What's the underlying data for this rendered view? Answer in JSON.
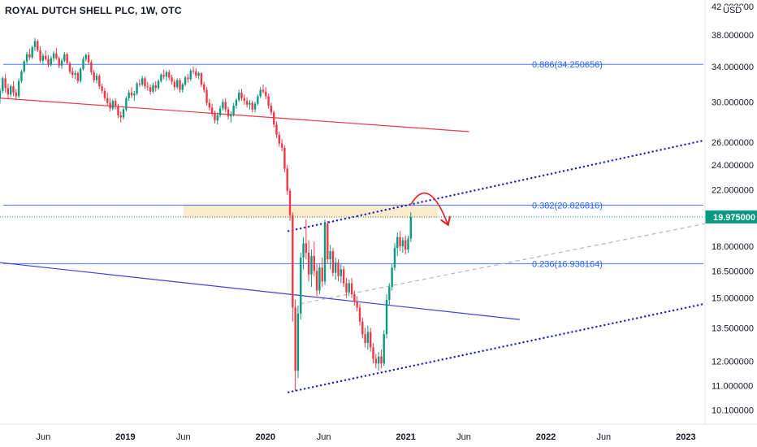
{
  "header": {
    "title": "ROYAL DUTCH SHELL PLC, 1W, OTC",
    "currency": "USD"
  },
  "chart_data": {
    "type": "candlestick",
    "title": "ROYAL DUTCH SHELL PLC, 1W, OTC",
    "y_axis": {
      "scale": "log",
      "currency": "USD",
      "ticks": [
        "42.000000",
        "38.000000",
        "34.000000",
        "30.000000",
        "26.000000",
        "24.000000",
        "22.000000",
        "18.000000",
        "16.500000",
        "15.000000",
        "13.500000",
        "12.000000",
        "11.000000",
        "10.100000"
      ],
      "tick_values": [
        42,
        38,
        34,
        30,
        26,
        24,
        22,
        18,
        16.5,
        15,
        13.5,
        12,
        11,
        10.1
      ],
      "range": [
        9.6,
        43
      ]
    },
    "x_axis": {
      "ticks": [
        "Jun",
        "2019",
        "Jun",
        "2020",
        "Jun",
        "2021",
        "Jun",
        "2022",
        "Jun",
        "2023"
      ],
      "tick_dates": [
        "2018-06-01",
        "2019-01-01",
        "2019-06-01",
        "2020-01-01",
        "2020-06-01",
        "2021-01-01",
        "2021-06-01",
        "2022-01-01",
        "2022-06-01",
        "2023-01-01"
      ],
      "bold": [
        false,
        true,
        false,
        true,
        false,
        true,
        false,
        true,
        false,
        true
      ],
      "range": [
        "2018-02-08",
        "2023-02-20"
      ]
    },
    "last_price": {
      "label": "19.975000",
      "value": 19.975,
      "color": "#089981"
    },
    "fib_levels": [
      {
        "label": "0.886(34.250656)",
        "value": 34.250656
      },
      {
        "label": "0.382(20.826816)",
        "value": 20.826816
      },
      {
        "label": "0.236(16.938164)",
        "value": 16.938164
      }
    ],
    "zones": [
      {
        "from_date": "2019-06-01",
        "to_date": "2021-03-25",
        "low": 19.9,
        "high": 20.9,
        "color": "#fde7c6"
      }
    ],
    "trendlines": [
      {
        "name": "upper-red",
        "color": "#f23645",
        "style": "solid",
        "p1": [
          "2018-02-08",
          30.4
        ],
        "p2": [
          "2021-06-15",
          27.0
        ]
      },
      {
        "name": "lower-blue",
        "color": "#3f3fd4",
        "style": "solid",
        "p1": [
          "2018-02-08",
          17.0
        ],
        "p2": [
          "2021-10-25",
          13.9
        ]
      },
      {
        "name": "upper-dotted",
        "color": "#2222bb",
        "style": "dotted",
        "p1": [
          "2020-03-01",
          19.0
        ],
        "p2": [
          "2023-02-20",
          26.2
        ]
      },
      {
        "name": "lower-dotted",
        "color": "#2222bb",
        "style": "dotted",
        "p1": [
          "2020-03-01",
          10.75
        ],
        "p2": [
          "2023-02-20",
          14.7
        ]
      },
      {
        "name": "mid-dashed",
        "color": "#b2b5be",
        "style": "dashed",
        "p1": [
          "2020-04-01",
          14.7
        ],
        "p2": [
          "2023-02-20",
          19.5
        ]
      }
    ],
    "arrow": {
      "color": "#e02020",
      "from": [
        "2021-01-15",
        20.9
      ],
      "peak": [
        "2021-03-01",
        21.4
      ],
      "to": [
        "2021-04-20",
        19.5
      ]
    },
    "colors": {
      "up": "#089981",
      "down": "#f23645",
      "fib": "#2962ff",
      "grid": "#e0e3eb"
    },
    "candles": [
      [
        "2018-02-08",
        30.4,
        31.5,
        29.8,
        31.2
      ],
      [
        "2018-02-15",
        31.2,
        32.8,
        30.9,
        32.6
      ],
      [
        "2018-02-22",
        32.6,
        33.1,
        31.0,
        31.5
      ],
      [
        "2018-03-01",
        31.5,
        32.0,
        30.3,
        30.8
      ],
      [
        "2018-03-08",
        30.8,
        31.9,
        30.5,
        31.7
      ],
      [
        "2018-03-15",
        31.7,
        32.3,
        30.6,
        31.0
      ],
      [
        "2018-03-22",
        31.0,
        31.4,
        30.2,
        30.6
      ],
      [
        "2018-03-29",
        30.6,
        32.6,
        30.4,
        32.3
      ],
      [
        "2018-04-05",
        32.3,
        33.6,
        32.1,
        33.4
      ],
      [
        "2018-04-12",
        33.4,
        34.8,
        33.2,
        34.6
      ],
      [
        "2018-04-19",
        34.6,
        35.8,
        34.3,
        35.5
      ],
      [
        "2018-04-26",
        35.5,
        36.2,
        34.8,
        35.1
      ],
      [
        "2018-05-03",
        35.1,
        36.6,
        34.9,
        36.4
      ],
      [
        "2018-05-10",
        36.4,
        37.6,
        35.9,
        37.2
      ],
      [
        "2018-05-17",
        37.2,
        37.4,
        35.8,
        36.0
      ],
      [
        "2018-05-24",
        36.0,
        36.5,
        34.4,
        34.7
      ],
      [
        "2018-05-31",
        34.7,
        35.6,
        34.2,
        35.3
      ],
      [
        "2018-06-07",
        35.3,
        36.0,
        34.7,
        34.9
      ],
      [
        "2018-06-14",
        34.9,
        35.4,
        33.9,
        34.2
      ],
      [
        "2018-06-21",
        34.2,
        35.3,
        34.0,
        35.0
      ],
      [
        "2018-06-28",
        35.0,
        35.9,
        34.6,
        35.6
      ],
      [
        "2018-07-05",
        35.6,
        36.3,
        34.8,
        35.0
      ],
      [
        "2018-07-12",
        35.0,
        35.2,
        33.8,
        34.1
      ],
      [
        "2018-07-19",
        34.1,
        35.0,
        33.7,
        34.7
      ],
      [
        "2018-07-26",
        34.7,
        35.8,
        34.5,
        35.5
      ],
      [
        "2018-08-02",
        35.5,
        35.7,
        34.2,
        34.4
      ],
      [
        "2018-08-09",
        34.4,
        34.6,
        33.1,
        33.4
      ],
      [
        "2018-08-16",
        33.4,
        33.9,
        32.6,
        33.0
      ],
      [
        "2018-08-23",
        33.0,
        33.5,
        32.5,
        33.2
      ],
      [
        "2018-08-30",
        33.2,
        33.4,
        32.0,
        32.3
      ],
      [
        "2018-09-06",
        32.3,
        33.9,
        32.1,
        33.7
      ],
      [
        "2018-09-13",
        33.7,
        35.2,
        33.5,
        34.9
      ],
      [
        "2018-09-20",
        34.9,
        35.6,
        34.6,
        35.4
      ],
      [
        "2018-09-27",
        35.4,
        35.8,
        34.2,
        34.5
      ],
      [
        "2018-10-04",
        34.5,
        34.8,
        33.0,
        33.3
      ],
      [
        "2018-10-11",
        33.3,
        33.6,
        32.1,
        32.4
      ],
      [
        "2018-10-18",
        32.4,
        33.2,
        32.0,
        32.9
      ],
      [
        "2018-10-25",
        32.9,
        33.1,
        31.4,
        31.7
      ],
      [
        "2018-11-01",
        31.7,
        32.0,
        30.9,
        31.2
      ],
      [
        "2018-11-08",
        31.2,
        31.5,
        30.1,
        30.4
      ],
      [
        "2018-11-15",
        30.4,
        31.0,
        29.6,
        29.9
      ],
      [
        "2018-11-22",
        29.9,
        30.4,
        29.0,
        29.3
      ],
      [
        "2018-11-29",
        29.3,
        30.3,
        29.1,
        30.1
      ],
      [
        "2018-12-06",
        30.1,
        30.4,
        29.2,
        29.5
      ],
      [
        "2018-12-13",
        29.5,
        29.8,
        28.3,
        28.6
      ],
      [
        "2018-12-20",
        28.6,
        29.0,
        27.9,
        28.4
      ],
      [
        "2018-12-27",
        28.4,
        29.5,
        28.2,
        29.2
      ],
      [
        "2019-01-03",
        29.2,
        30.6,
        29.0,
        30.4
      ],
      [
        "2019-01-10",
        30.4,
        31.3,
        30.1,
        31.0
      ],
      [
        "2019-01-17",
        31.0,
        31.6,
        30.4,
        30.7
      ],
      [
        "2019-01-24",
        30.7,
        31.2,
        30.1,
        30.9
      ],
      [
        "2019-01-31",
        30.9,
        32.2,
        30.7,
        32.0
      ],
      [
        "2019-02-07",
        32.0,
        32.5,
        31.6,
        31.9
      ],
      [
        "2019-02-14",
        31.9,
        32.9,
        31.7,
        32.6
      ],
      [
        "2019-02-21",
        32.6,
        32.8,
        31.4,
        31.7
      ],
      [
        "2019-02-28",
        31.7,
        32.2,
        31.2,
        31.6
      ],
      [
        "2019-03-07",
        31.6,
        31.9,
        30.8,
        31.1
      ],
      [
        "2019-03-14",
        31.1,
        32.1,
        30.9,
        31.8
      ],
      [
        "2019-03-21",
        31.8,
        32.3,
        31.1,
        31.5
      ],
      [
        "2019-03-28",
        31.5,
        32.5,
        31.3,
        32.3
      ],
      [
        "2019-04-04",
        32.3,
        33.2,
        32.1,
        33.0
      ],
      [
        "2019-04-11",
        33.0,
        33.6,
        32.5,
        32.8
      ],
      [
        "2019-04-18",
        32.8,
        33.5,
        32.3,
        33.3
      ],
      [
        "2019-04-25",
        33.3,
        33.6,
        32.4,
        32.7
      ],
      [
        "2019-05-02",
        32.7,
        33.0,
        31.9,
        32.2
      ],
      [
        "2019-05-09",
        32.2,
        32.5,
        31.3,
        31.6
      ],
      [
        "2019-05-16",
        31.6,
        32.6,
        31.4,
        32.4
      ],
      [
        "2019-05-23",
        32.4,
        32.6,
        31.0,
        31.3
      ],
      [
        "2019-05-30",
        31.3,
        32.1,
        31.0,
        31.9
      ],
      [
        "2019-06-06",
        31.9,
        32.9,
        31.7,
        32.7
      ],
      [
        "2019-06-13",
        32.7,
        33.1,
        32.1,
        32.5
      ],
      [
        "2019-06-20",
        32.5,
        33.7,
        32.3,
        33.5
      ],
      [
        "2019-06-27",
        33.5,
        34.0,
        33.1,
        33.4
      ],
      [
        "2019-07-04",
        33.4,
        33.8,
        32.6,
        32.9
      ],
      [
        "2019-07-11",
        32.9,
        33.4,
        32.5,
        33.2
      ],
      [
        "2019-07-18",
        33.2,
        33.3,
        31.6,
        31.9
      ],
      [
        "2019-07-25",
        31.9,
        32.2,
        31.0,
        31.3
      ],
      [
        "2019-08-01",
        31.3,
        31.6,
        29.6,
        29.9
      ],
      [
        "2019-08-08",
        29.9,
        30.3,
        29.1,
        29.4
      ],
      [
        "2019-08-15",
        29.4,
        29.8,
        28.5,
        28.8
      ],
      [
        "2019-08-22",
        28.8,
        29.1,
        27.8,
        28.1
      ],
      [
        "2019-08-29",
        28.1,
        28.9,
        27.7,
        28.6
      ],
      [
        "2019-09-05",
        28.6,
        29.6,
        28.4,
        29.3
      ],
      [
        "2019-09-12",
        29.3,
        30.3,
        29.1,
        30.0
      ],
      [
        "2019-09-19",
        30.0,
        30.4,
        28.9,
        29.2
      ],
      [
        "2019-09-26",
        29.2,
        29.5,
        28.2,
        28.5
      ],
      [
        "2019-10-03",
        28.5,
        29.0,
        27.9,
        28.7
      ],
      [
        "2019-10-10",
        28.7,
        29.9,
        28.5,
        29.6
      ],
      [
        "2019-10-17",
        29.6,
        30.4,
        29.3,
        30.2
      ],
      [
        "2019-10-24",
        30.2,
        31.3,
        30.0,
        31.0
      ],
      [
        "2019-10-31",
        31.0,
        31.4,
        30.1,
        30.4
      ],
      [
        "2019-11-07",
        30.4,
        30.8,
        29.7,
        30.1
      ],
      [
        "2019-11-14",
        30.1,
        30.5,
        29.4,
        29.7
      ],
      [
        "2019-11-21",
        29.7,
        30.2,
        29.2,
        29.9
      ],
      [
        "2019-11-28",
        29.9,
        30.1,
        28.9,
        29.2
      ],
      [
        "2019-12-05",
        29.2,
        30.0,
        28.9,
        29.8
      ],
      [
        "2019-12-12",
        29.8,
        30.8,
        29.6,
        30.6
      ],
      [
        "2019-12-19",
        30.6,
        31.6,
        30.4,
        31.3
      ],
      [
        "2019-12-26",
        31.3,
        31.9,
        30.9,
        31.1
      ],
      [
        "2020-01-02",
        31.1,
        31.6,
        30.3,
        30.6
      ],
      [
        "2020-01-09",
        30.6,
        30.9,
        29.3,
        29.6
      ],
      [
        "2020-01-16",
        29.6,
        29.9,
        28.6,
        28.9
      ],
      [
        "2020-01-23",
        28.9,
        29.1,
        27.4,
        27.7
      ],
      [
        "2020-01-30",
        27.7,
        28.0,
        26.4,
        26.7
      ],
      [
        "2020-02-06",
        26.7,
        27.0,
        25.6,
        25.9
      ],
      [
        "2020-02-13",
        25.9,
        26.3,
        25.2,
        25.5
      ],
      [
        "2020-02-20",
        25.5,
        25.7,
        23.4,
        23.7
      ],
      [
        "2020-02-27",
        23.7,
        24.0,
        21.6,
        21.9
      ],
      [
        "2020-03-05",
        21.9,
        22.1,
        19.7,
        20.1
      ],
      [
        "2020-03-12",
        20.1,
        20.3,
        13.8,
        14.5
      ],
      [
        "2020-03-19",
        14.5,
        14.9,
        10.8,
        11.6
      ],
      [
        "2020-03-26",
        11.6,
        14.6,
        11.3,
        14.2
      ],
      [
        "2020-04-02",
        14.2,
        17.6,
        13.9,
        17.3
      ],
      [
        "2020-04-09",
        17.3,
        18.6,
        16.6,
        18.2
      ],
      [
        "2020-04-16",
        18.2,
        19.8,
        17.2,
        17.6
      ],
      [
        "2020-04-23",
        17.6,
        18.4,
        15.9,
        16.3
      ],
      [
        "2020-04-30",
        16.3,
        17.8,
        15.6,
        17.4
      ],
      [
        "2020-05-07",
        17.4,
        18.3,
        16.2,
        16.5
      ],
      [
        "2020-05-14",
        16.5,
        16.9,
        15.1,
        15.4
      ],
      [
        "2020-05-21",
        15.4,
        16.9,
        15.2,
        16.7
      ],
      [
        "2020-05-28",
        16.7,
        17.3,
        15.6,
        15.9
      ],
      [
        "2020-06-04",
        15.9,
        19.8,
        15.7,
        19.5
      ],
      [
        "2020-06-11",
        19.5,
        19.7,
        16.9,
        17.2
      ],
      [
        "2020-06-18",
        17.2,
        18.1,
        16.6,
        17.7
      ],
      [
        "2020-06-25",
        17.7,
        17.9,
        16.2,
        16.4
      ],
      [
        "2020-07-02",
        16.4,
        17.3,
        16.0,
        17.0
      ],
      [
        "2020-07-09",
        17.0,
        17.2,
        15.9,
        16.2
      ],
      [
        "2020-07-16",
        16.2,
        16.9,
        15.8,
        16.6
      ],
      [
        "2020-07-23",
        16.6,
        16.8,
        15.6,
        15.8
      ],
      [
        "2020-07-30",
        15.8,
        16.1,
        15.0,
        15.3
      ],
      [
        "2020-08-06",
        15.3,
        16.0,
        15.1,
        15.8
      ],
      [
        "2020-08-13",
        15.8,
        16.1,
        15.0,
        15.2
      ],
      [
        "2020-08-20",
        15.2,
        15.4,
        14.6,
        14.8
      ],
      [
        "2020-08-27",
        14.8,
        15.1,
        14.3,
        14.5
      ],
      [
        "2020-09-03",
        14.5,
        14.7,
        13.6,
        13.8
      ],
      [
        "2020-09-10",
        13.8,
        14.0,
        13.0,
        13.2
      ],
      [
        "2020-09-17",
        13.2,
        13.5,
        12.6,
        12.8
      ],
      [
        "2020-09-24",
        12.8,
        13.6,
        12.5,
        13.3
      ],
      [
        "2020-10-01",
        13.3,
        13.5,
        12.4,
        12.6
      ],
      [
        "2020-10-08",
        12.6,
        12.8,
        11.9,
        12.1
      ],
      [
        "2020-10-15",
        12.1,
        12.3,
        11.7,
        11.9
      ],
      [
        "2020-10-22",
        11.9,
        12.4,
        11.6,
        12.2
      ],
      [
        "2020-10-29",
        12.2,
        12.5,
        11.7,
        11.9
      ],
      [
        "2020-11-05",
        11.9,
        13.4,
        11.8,
        13.2
      ],
      [
        "2020-11-12",
        13.2,
        15.2,
        13.0,
        14.9
      ],
      [
        "2020-11-19",
        14.9,
        15.8,
        14.6,
        15.6
      ],
      [
        "2020-11-26",
        15.6,
        16.9,
        15.4,
        16.7
      ],
      [
        "2020-12-03",
        16.7,
        18.2,
        16.5,
        17.9
      ],
      [
        "2020-12-10",
        17.9,
        18.9,
        17.4,
        18.6
      ],
      [
        "2020-12-17",
        18.6,
        19.0,
        17.7,
        18.0
      ],
      [
        "2020-12-24",
        18.0,
        18.6,
        17.6,
        18.4
      ],
      [
        "2020-12-31",
        18.4,
        18.7,
        17.5,
        17.8
      ],
      [
        "2021-01-07",
        17.8,
        18.7,
        17.6,
        18.5
      ],
      [
        "2021-01-14",
        18.5,
        20.3,
        18.3,
        19.975
      ]
    ]
  }
}
